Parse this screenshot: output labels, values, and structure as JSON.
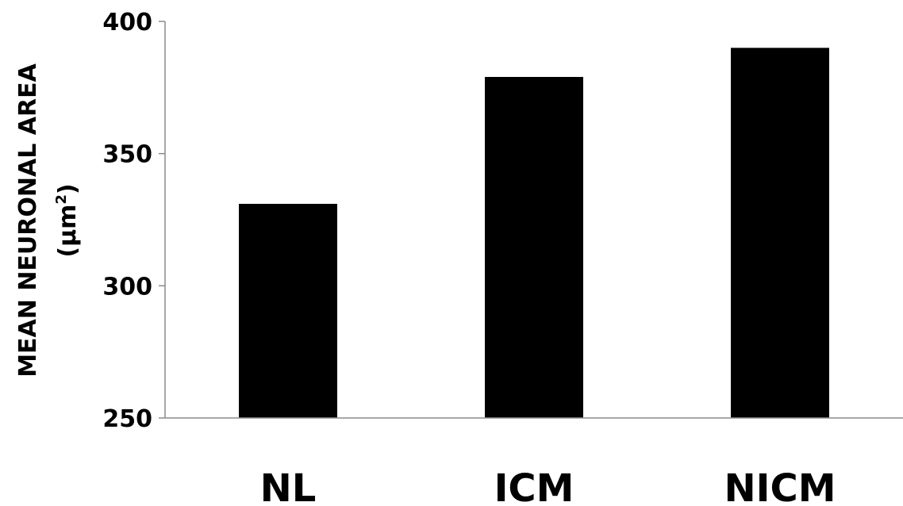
{
  "chart_data": {
    "type": "bar",
    "categories": [
      "NL",
      "ICM",
      "NICM"
    ],
    "series": [
      {
        "values": [
          331,
          379,
          390
        ]
      }
    ],
    "ylabel": "MEAN NEURONAL AREA",
    "ylabel_unit": "(µm",
    "ylabel_unit_sup": "2",
    "ylabel_unit_close": ")",
    "ylim": [
      250,
      400
    ],
    "yticks": [
      250,
      300,
      350,
      400
    ],
    "bar_color": "#000000",
    "axis_color": "#8c8c8c",
    "grid": false,
    "legend": false
  }
}
